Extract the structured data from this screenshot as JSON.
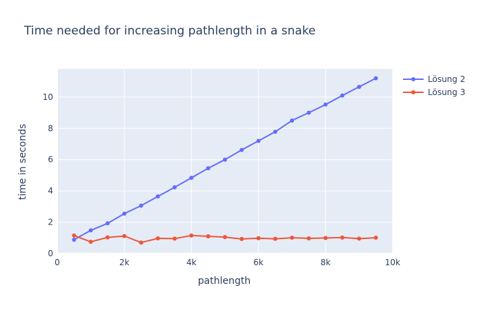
{
  "chart_data": {
    "type": "line",
    "title": "Time needed for increasing pathlength in a snake",
    "xlabel": "pathlength",
    "ylabel": "time in seconds",
    "xlim": [
      0,
      10000
    ],
    "ylim": [
      0,
      11.8
    ],
    "x_ticks": [
      0,
      2000,
      4000,
      6000,
      8000,
      10000
    ],
    "x_tick_labels": [
      "0",
      "2k",
      "4k",
      "6k",
      "8k",
      "10k"
    ],
    "y_ticks": [
      0,
      2,
      4,
      6,
      8,
      10
    ],
    "y_tick_labels": [
      "0",
      "2",
      "4",
      "6",
      "8",
      "10"
    ],
    "grid": true,
    "legend_position": "top-right",
    "x": [
      500,
      1000,
      1500,
      2000,
      2500,
      3000,
      3500,
      4000,
      4500,
      5000,
      5500,
      6000,
      6500,
      7000,
      7500,
      8000,
      8500,
      9000,
      9500
    ],
    "series": [
      {
        "name": "Lösung 2",
        "color": "#636efa",
        "values": [
          0.88,
          1.48,
          1.93,
          2.55,
          3.06,
          3.65,
          4.23,
          4.84,
          5.45,
          6.0,
          6.62,
          7.2,
          7.78,
          8.5,
          9.0,
          9.52,
          10.1,
          10.65,
          11.2
        ]
      },
      {
        "name": "Lösung 3",
        "color": "#ef553b",
        "values": [
          1.15,
          0.75,
          1.03,
          1.12,
          0.7,
          0.97,
          0.95,
          1.15,
          1.1,
          1.05,
          0.93,
          0.98,
          0.94,
          1.01,
          0.97,
          0.99,
          1.02,
          0.95,
          1.01
        ]
      }
    ]
  }
}
